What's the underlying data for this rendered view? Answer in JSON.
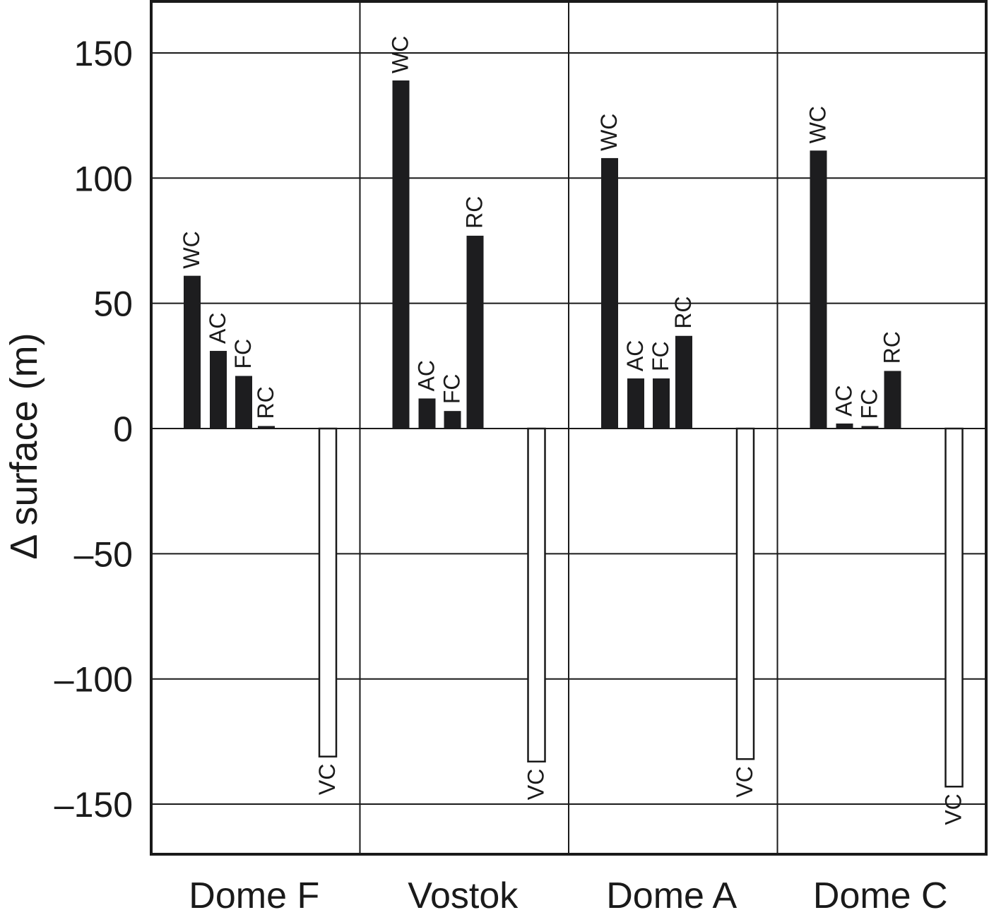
{
  "chart_data": {
    "type": "bar",
    "ylabel": "Δ surface (m)",
    "xlabel": "",
    "ylim": [
      -170,
      170
    ],
    "yticks": [
      150,
      100,
      50,
      0,
      -50,
      -100,
      -150
    ],
    "ytick_labels": [
      "150",
      "100",
      "50",
      "0",
      "–50",
      "–100",
      "–150"
    ],
    "grid": true,
    "categories": [
      "Dome F",
      "Vostok",
      "Dome A",
      "Dome C"
    ],
    "series": [
      {
        "name": "WC",
        "filled": true,
        "values": [
          61,
          139,
          108,
          111
        ]
      },
      {
        "name": "AC",
        "filled": true,
        "values": [
          31,
          12,
          20,
          2
        ]
      },
      {
        "name": "FC",
        "filled": true,
        "values": [
          21,
          7,
          20,
          1
        ]
      },
      {
        "name": "RC",
        "filled": true,
        "values": [
          1,
          77,
          37,
          23
        ]
      },
      {
        "name": "VC",
        "filled": false,
        "values": [
          -131,
          -133,
          -132,
          -143
        ]
      }
    ],
    "colors": {
      "filled": "#1d1d1f",
      "open": "#ffffff",
      "stroke": "#1a1a1a"
    }
  }
}
